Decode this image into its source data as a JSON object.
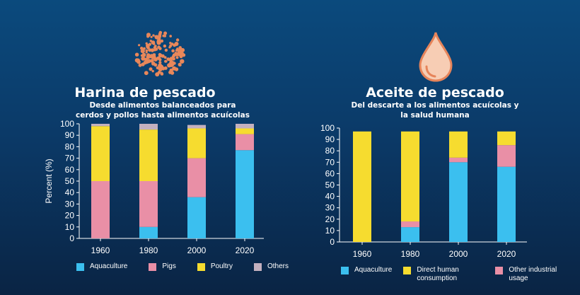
{
  "colors": {
    "aquaculture": "#3bbfef",
    "pigs": "#e98fa6",
    "poultry": "#f6dc2f",
    "others": "#c3b0bf",
    "direct_human": "#f6dc2f",
    "other_industrial": "#e98fa6",
    "axis": "#ffffff"
  },
  "icons": {
    "left": "fishmeal-pellets-icon",
    "right": "oil-drop-icon"
  },
  "chart_data": [
    {
      "type": "bar",
      "stacked": true,
      "title": "Harina de pescado",
      "subtitle": "Desde alimentos  balanceados  para cerdos y pollos hasta alimentos  acuícolas",
      "ylabel": "Percent (%)",
      "xlabel": "",
      "ylim": [
        0,
        100
      ],
      "yticks": [
        0,
        10,
        20,
        30,
        40,
        50,
        60,
        70,
        80,
        90,
        100
      ],
      "categories": [
        "1960",
        "1980",
        "2000",
        "2020"
      ],
      "series": [
        {
          "name": "Aquaculture",
          "color_key": "aquaculture",
          "values": [
            0,
            10,
            36,
            77
          ]
        },
        {
          "name": "Pigs",
          "color_key": "pigs",
          "values": [
            50,
            40,
            34,
            14
          ]
        },
        {
          "name": "Poultry",
          "color_key": "poultry",
          "values": [
            48,
            45,
            26,
            5
          ]
        },
        {
          "name": "Others",
          "color_key": "others",
          "values": [
            2,
            5,
            3,
            4
          ]
        }
      ],
      "legend": [
        {
          "label": "Aquaculture",
          "color_key": "aquaculture"
        },
        {
          "label": "Pigs",
          "color_key": "pigs"
        },
        {
          "label": "Poultry",
          "color_key": "poultry"
        },
        {
          "label": "Others",
          "color_key": "others"
        }
      ]
    },
    {
      "type": "bar",
      "stacked": true,
      "title": "Aceite de pescado",
      "subtitle": "Del descarte a los alimentos  acuícolas y la salud humana",
      "ylabel": "",
      "xlabel": "",
      "ylim": [
        0,
        100
      ],
      "yticks": [
        0,
        10,
        20,
        30,
        40,
        50,
        60,
        70,
        80,
        90,
        100
      ],
      "categories": [
        "1960",
        "1980",
        "2000",
        "2020"
      ],
      "series": [
        {
          "name": "Aquaculture",
          "color_key": "aquaculture",
          "values": [
            0,
            13,
            70,
            66
          ]
        },
        {
          "name": "Other industrial usage",
          "color_key": "other_industrial",
          "values": [
            0,
            5,
            4,
            19
          ]
        },
        {
          "name": "Direct human consumption",
          "color_key": "direct_human",
          "values": [
            97,
            79,
            23,
            12
          ]
        }
      ],
      "legend": [
        {
          "label": "Aquaculture",
          "color_key": "aquaculture"
        },
        {
          "label": "Direct human consumption",
          "color_key": "direct_human"
        },
        {
          "label": "Other industrial usage",
          "color_key": "other_industrial"
        }
      ]
    }
  ]
}
